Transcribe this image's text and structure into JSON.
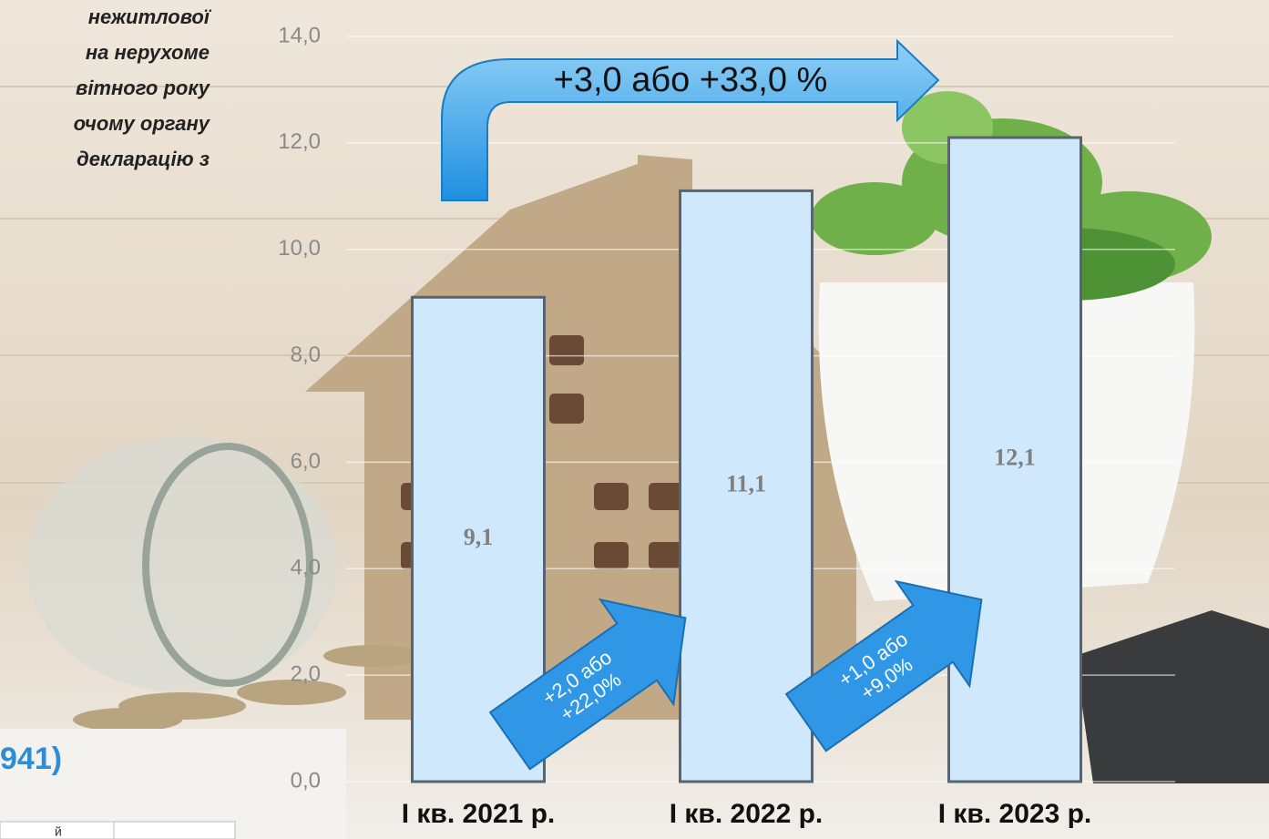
{
  "chart_data": {
    "type": "bar",
    "categories": [
      "І кв. 2021 р.",
      "І кв. 2022 р.",
      "І кв. 2023 р."
    ],
    "values": [
      9.1,
      11.1,
      12.1
    ],
    "value_labels": [
      "9,1",
      "11,1",
      "12,1"
    ],
    "color": "#cfe8fb",
    "ylim": [
      0,
      14
    ],
    "yticks": [
      {
        "value": 0,
        "label": "0,0"
      },
      {
        "value": 2,
        "label": "2,0"
      },
      {
        "value": 4,
        "label": "4,0"
      },
      {
        "value": 6,
        "label": "6,0"
      },
      {
        "value": 8,
        "label": "8,0"
      },
      {
        "value": 10,
        "label": "10,0"
      },
      {
        "value": 12,
        "label": "12,0"
      },
      {
        "value": 14,
        "label": "14,0"
      }
    ],
    "grid": true,
    "annotations": [
      {
        "lines": [
          "+3,0 або +33,0 %"
        ]
      },
      {
        "lines": [
          "+2,0 або",
          "+22,0%"
        ]
      },
      {
        "lines": [
          "+1,0 або",
          "+9,0%"
        ]
      }
    ]
  },
  "side_text": [
    "нежитлової",
    "на  нерухоме",
    "вітного року",
    "очому органу",
    "декларацію  з"
  ],
  "side_code": "941)",
  "table_fragment": "й"
}
